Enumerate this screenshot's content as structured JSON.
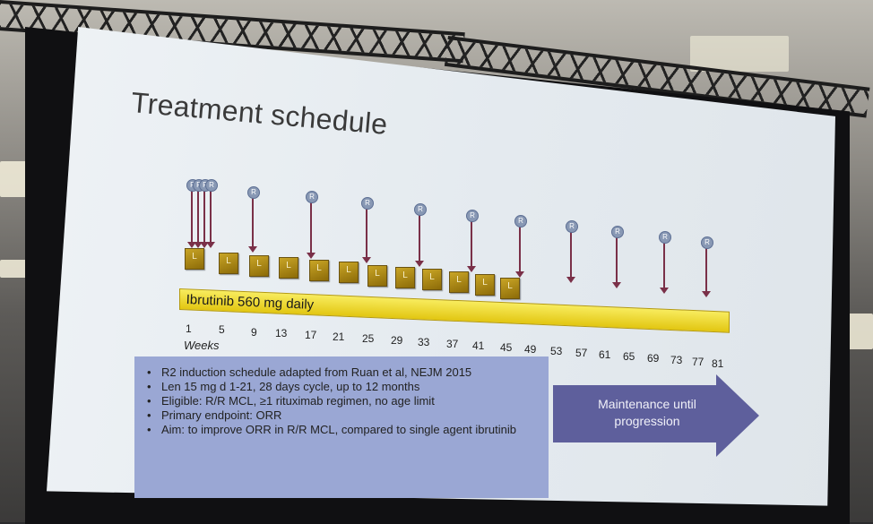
{
  "slide": {
    "title": "Treatment schedule",
    "r_marker": "R",
    "l_marker": "L",
    "drug_bar_label": "Ibrutinib 560 mg daily",
    "weeks_label": "Weeks",
    "week_ticks": [
      "1",
      "5",
      "9",
      "13",
      "17",
      "21",
      "25",
      "29",
      "33",
      "37",
      "41",
      "45",
      "49",
      "53",
      "57",
      "61",
      "65",
      "69",
      "73",
      "77",
      "81"
    ],
    "notes": [
      "R2 induction schedule adapted from Ruan et al, NEJM 2015",
      "Len 15 mg d 1-21, 28 days cycle, up to 12 months",
      "Eligible: R/R MCL, ≥1 rituximab regimen, no age limit",
      "Primary endpoint: ORR",
      "Aim: to improve ORR in R/R MCL, compared to single agent ibrutinib"
    ],
    "maintenance_label_line1": "Maintenance until",
    "maintenance_label_line2": "progression",
    "colors": {
      "r_marker": "#8898b4",
      "arrow": "#7a3048",
      "l_box": "#b08d17",
      "drug_bar": "#f0dd3a",
      "notes_box": "#9aa7d4",
      "maintenance_arrow": "#5e5f9c"
    }
  }
}
